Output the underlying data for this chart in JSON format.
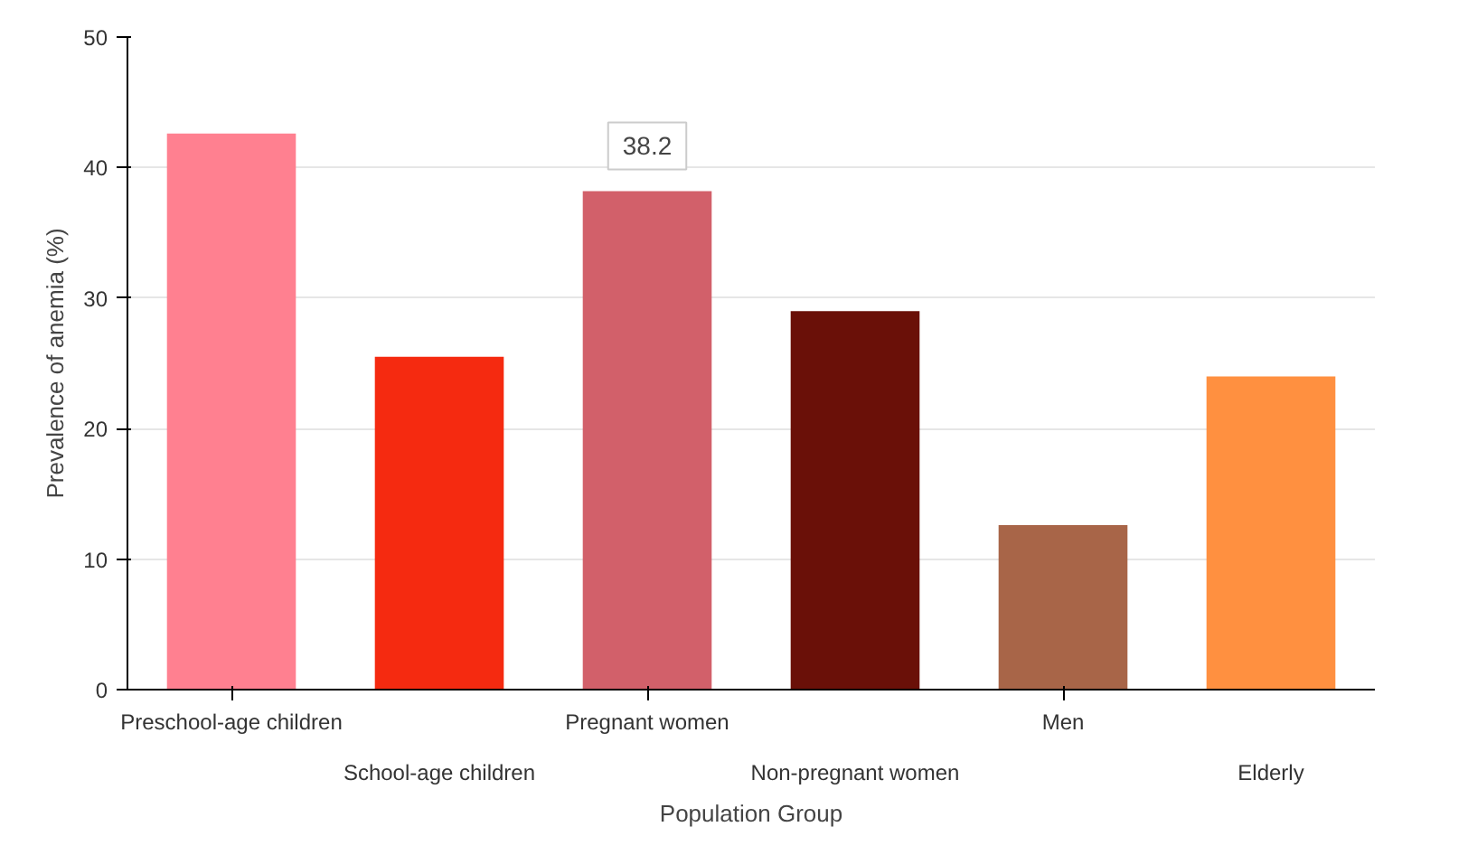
{
  "chart_data": {
    "type": "bar",
    "xlabel": "Population Group",
    "ylabel": "Prevalence of anemia (%)",
    "categories": [
      "Preschool-age children",
      "School-age children",
      "Pregnant women",
      "Non-pregnant women",
      "Men",
      "Elderly"
    ],
    "values": [
      42.6,
      25.5,
      38.2,
      29.0,
      12.6,
      24.0
    ],
    "colors": [
      "#ff8090",
      "#f52a10",
      "#d2606a",
      "#6a1008",
      "#a86548",
      "#ff9040"
    ],
    "ylim": [
      0,
      50
    ],
    "yticks": [
      0,
      10,
      20,
      30,
      40,
      50
    ],
    "grid": "y",
    "annotations": [
      {
        "text": "38.2",
        "x": "Pregnant women",
        "y": 38.2
      }
    ]
  }
}
